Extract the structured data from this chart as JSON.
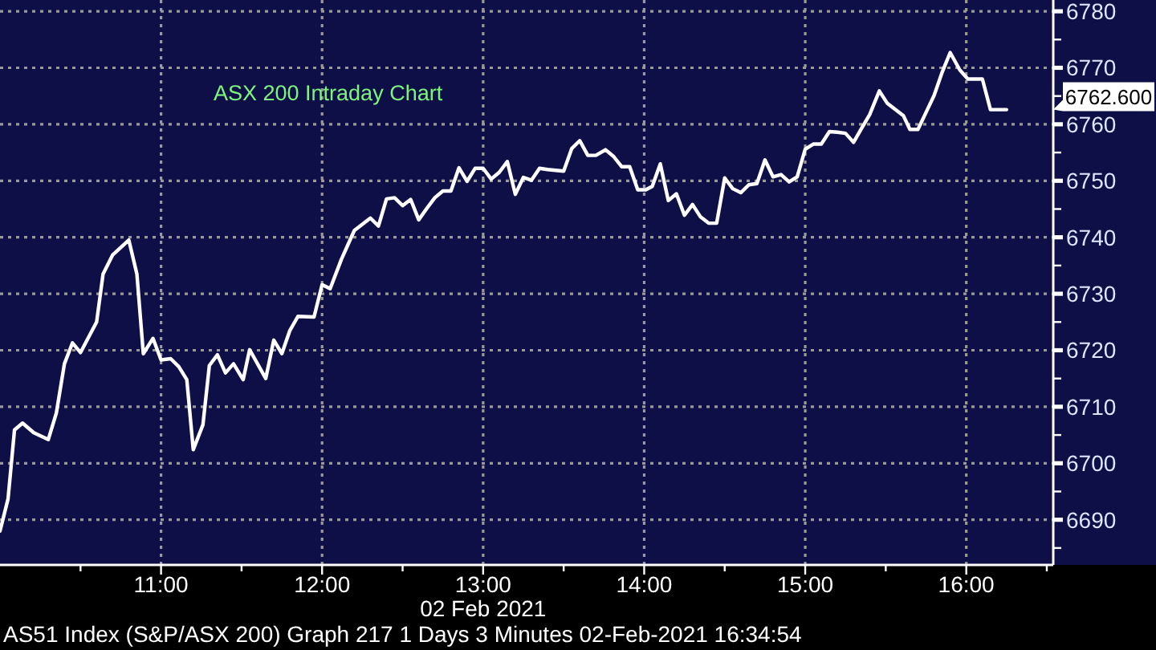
{
  "chart_data": {
    "type": "line",
    "title": "ASX 200 Intraday Chart",
    "xlabel": "02 Feb 2021",
    "xlim": [
      10,
      16.54
    ],
    "ylim": [
      6682,
      6782
    ],
    "xticks": [
      {
        "value": 10.5,
        "label": null
      },
      {
        "value": 11,
        "label": "11:00"
      },
      {
        "value": 11.5,
        "label": null
      },
      {
        "value": 12,
        "label": "12:00"
      },
      {
        "value": 12.5,
        "label": null
      },
      {
        "value": 13,
        "label": "13:00"
      },
      {
        "value": 13.5,
        "label": null
      },
      {
        "value": 14,
        "label": "14:00"
      },
      {
        "value": 14.5,
        "label": null
      },
      {
        "value": 15,
        "label": "15:00"
      },
      {
        "value": 15.5,
        "label": null
      },
      {
        "value": 16,
        "label": "16:00"
      },
      {
        "value": 16.5,
        "label": null
      }
    ],
    "yticks": [
      {
        "value": 6685,
        "label": null
      },
      6690,
      {
        "value": 6695,
        "label": null
      },
      6700,
      {
        "value": 6705,
        "label": null
      },
      6710,
      {
        "value": 6715,
        "label": null
      },
      6720,
      {
        "value": 6725,
        "label": null
      },
      6730,
      {
        "value": 6735,
        "label": null
      },
      6740,
      {
        "value": 6745,
        "label": null
      },
      6750,
      {
        "value": 6755,
        "label": null
      },
      6760,
      {
        "value": 6765,
        "label": null
      },
      6770,
      {
        "value": 6775,
        "label": null
      },
      6780
    ],
    "grid": true,
    "series": [
      {
        "color": "#ffffff",
        "x": [
          10.0,
          10.05,
          10.09,
          10.14,
          10.21,
          10.3,
          10.35,
          10.4,
          10.45,
          10.5,
          10.6,
          10.64,
          10.7,
          10.8,
          10.85,
          10.89,
          10.95,
          11.0,
          11.06,
          11.11,
          11.16,
          11.2,
          11.26,
          11.3,
          11.35,
          11.4,
          11.45,
          11.51,
          11.55,
          11.65,
          11.7,
          11.75,
          11.8,
          11.85,
          11.95,
          12.0,
          12.05,
          12.12,
          12.2,
          12.3,
          12.35,
          12.4,
          12.45,
          12.5,
          12.55,
          12.6,
          12.65,
          12.7,
          12.75,
          12.8,
          12.85,
          12.9,
          12.95,
          13.0,
          13.05,
          13.1,
          13.15,
          13.2,
          13.25,
          13.3,
          13.35,
          13.4,
          13.5,
          13.55,
          13.6,
          13.65,
          13.7,
          13.76,
          13.81,
          13.86,
          13.91,
          13.96,
          14.01,
          14.05,
          14.1,
          14.15,
          14.2,
          14.25,
          14.3,
          14.35,
          14.4,
          14.45,
          14.5,
          14.55,
          14.6,
          14.65,
          14.7,
          14.75,
          14.8,
          14.85,
          14.9,
          14.95,
          15.0,
          15.05,
          15.1,
          15.15,
          15.2,
          15.25,
          15.3,
          15.35,
          15.4,
          15.46,
          15.51,
          15.56,
          15.61,
          15.65,
          15.7,
          15.75,
          15.8,
          15.85,
          15.9,
          15.96,
          16.01,
          16.1,
          16.15,
          16.25
        ],
        "values": [
          6688,
          6693.7,
          6705.9,
          6707.1,
          6705.4,
          6704.2,
          6708.9,
          6717.6,
          6721.3,
          6719.6,
          6725,
          6733.5,
          6736.9,
          6739.5,
          6733.5,
          6719.4,
          6722.1,
          6718.3,
          6718.5,
          6717.1,
          6714.8,
          6702.4,
          6706.8,
          6717.3,
          6719.2,
          6716,
          6717.6,
          6714.8,
          6720.1,
          6715,
          6721.8,
          6719.4,
          6723.5,
          6726,
          6725.9,
          6731.6,
          6730.9,
          6736.1,
          6741.2,
          6743.4,
          6742,
          6746.8,
          6747,
          6745.6,
          6746.7,
          6743.1,
          6745.1,
          6747,
          6748.2,
          6748.2,
          6752.3,
          6749.9,
          6752.2,
          6752.2,
          6750.3,
          6751.5,
          6753.4,
          6747.6,
          6750.6,
          6750.1,
          6752.2,
          6752,
          6751.7,
          6755.7,
          6757.1,
          6754.5,
          6754.5,
          6755.5,
          6754.3,
          6752.5,
          6752.5,
          6748.4,
          6748.4,
          6749,
          6753,
          6746.5,
          6747.7,
          6743.9,
          6745.8,
          6743.6,
          6742.5,
          6742.5,
          6750.5,
          6748.6,
          6747.9,
          6749.3,
          6749.5,
          6753.7,
          6750.7,
          6751.1,
          6749.8,
          6750.7,
          6755.6,
          6756.5,
          6756.5,
          6758.7,
          6758.6,
          6758.4,
          6756.8,
          6759.3,
          6761.7,
          6765.9,
          6763.7,
          6762.6,
          6761.5,
          6759.1,
          6759.1,
          6762.1,
          6765.1,
          6769.2,
          6772.7,
          6769.6,
          6768,
          6768,
          6762.6,
          6762.6
        ]
      }
    ],
    "annotations": [
      "6762.600",
      "AS51 Index (S&P/ASX 200) Graph 217 1 Days 3 Minutes 02-Feb-2021 16:34:54"
    ]
  }
}
